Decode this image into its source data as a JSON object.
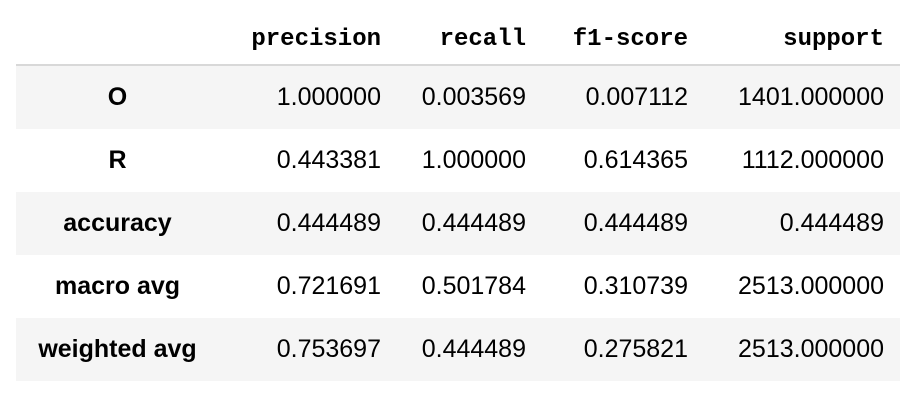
{
  "table": {
    "columns": [
      "",
      "precision",
      "recall",
      "f1-score",
      "support"
    ],
    "rows": [
      {
        "label": "O",
        "precision": "1.000000",
        "recall": "0.003569",
        "f1": "0.007112",
        "support": "1401.000000"
      },
      {
        "label": "R",
        "precision": "0.443381",
        "recall": "1.000000",
        "f1": "0.614365",
        "support": "1112.000000"
      },
      {
        "label": "accuracy",
        "precision": "0.444489",
        "recall": "0.444489",
        "f1": "0.444489",
        "support": "0.444489"
      },
      {
        "label": "macro avg",
        "precision": "0.721691",
        "recall": "0.501784",
        "f1": "0.310739",
        "support": "2513.000000"
      },
      {
        "label": "weighted avg",
        "precision": "0.753697",
        "recall": "0.444489",
        "f1": "0.275821",
        "support": "2513.000000"
      }
    ]
  },
  "colors": {
    "striped_row_bg": "#f5f5f5",
    "header_rule": "#d8d8d8"
  }
}
